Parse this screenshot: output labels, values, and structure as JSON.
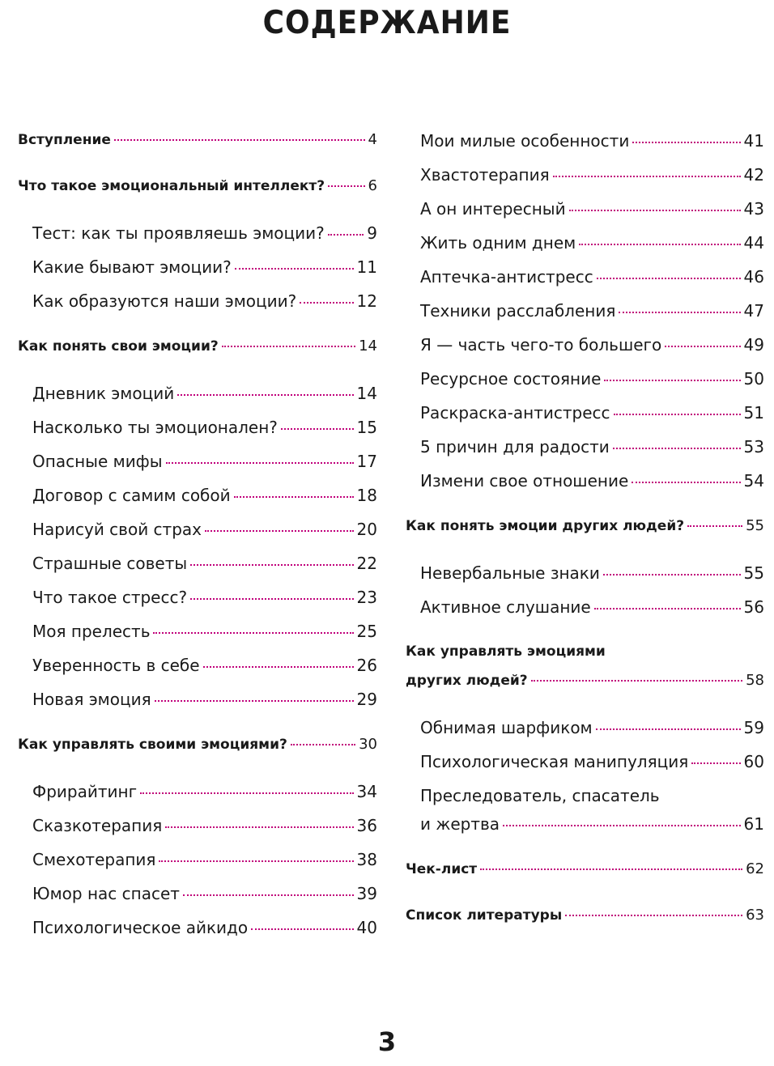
{
  "title": "СОДЕРЖАНИЕ",
  "page_number": "3",
  "columns": [
    [
      {
        "lines": [
          "Вступление"
        ],
        "page": 4,
        "bold": true
      },
      {
        "lines": [
          "Что такое эмоциональный интеллект?"
        ],
        "page": 6,
        "bold": true
      },
      {
        "lines": [
          "Тест: как ты проявляешь эмоции?"
        ],
        "page": 9,
        "bold": false
      },
      {
        "lines": [
          "Какие бывают эмоции?"
        ],
        "page": 11,
        "bold": false
      },
      {
        "lines": [
          "Как образуются наши эмоции?"
        ],
        "page": 12,
        "bold": false
      },
      {
        "lines": [
          "Как понять свои эмоции?"
        ],
        "page": 14,
        "bold": true
      },
      {
        "lines": [
          "Дневник эмоций"
        ],
        "page": 14,
        "bold": false
      },
      {
        "lines": [
          "Насколько ты эмоционален?"
        ],
        "page": 15,
        "bold": false
      },
      {
        "lines": [
          "Опасные мифы"
        ],
        "page": 17,
        "bold": false
      },
      {
        "lines": [
          "Договор с самим собой"
        ],
        "page": 18,
        "bold": false
      },
      {
        "lines": [
          "Нарисуй свой страх"
        ],
        "page": 20,
        "bold": false
      },
      {
        "lines": [
          "Страшные советы"
        ],
        "page": 22,
        "bold": false
      },
      {
        "lines": [
          "Что такое стресс?"
        ],
        "page": 23,
        "bold": false
      },
      {
        "lines": [
          "Моя прелесть"
        ],
        "page": 25,
        "bold": false
      },
      {
        "lines": [
          "Уверенность в себе"
        ],
        "page": 26,
        "bold": false
      },
      {
        "lines": [
          "Новая эмоция"
        ],
        "page": 29,
        "bold": false
      },
      {
        "lines": [
          "Как управлять своими эмоциями?"
        ],
        "page": 30,
        "bold": true
      },
      {
        "lines": [
          "Фрирайтинг"
        ],
        "page": 34,
        "bold": false
      },
      {
        "lines": [
          "Сказкотерапия"
        ],
        "page": 36,
        "bold": false
      },
      {
        "lines": [
          "Смехотерапия"
        ],
        "page": 38,
        "bold": false
      },
      {
        "lines": [
          "Юмор нас спасет"
        ],
        "page": 39,
        "bold": false
      },
      {
        "lines": [
          "Психологическое айкидо"
        ],
        "page": 40,
        "bold": false
      }
    ],
    [
      {
        "lines": [
          "Мои милые особенности"
        ],
        "page": 41,
        "bold": false
      },
      {
        "lines": [
          "Хвастотерапия"
        ],
        "page": 42,
        "bold": false
      },
      {
        "lines": [
          "А он интересный"
        ],
        "page": 43,
        "bold": false
      },
      {
        "lines": [
          "Жить одним днем"
        ],
        "page": 44,
        "bold": false
      },
      {
        "lines": [
          "Аптечка-антистресс"
        ],
        "page": 46,
        "bold": false
      },
      {
        "lines": [
          "Техники расслабления"
        ],
        "page": 47,
        "bold": false
      },
      {
        "lines": [
          "Я — часть чего-то большего"
        ],
        "page": 49,
        "bold": false
      },
      {
        "lines": [
          "Ресурсное состояние"
        ],
        "page": 50,
        "bold": false
      },
      {
        "lines": [
          "Раскраска-антистресс"
        ],
        "page": 51,
        "bold": false
      },
      {
        "lines": [
          "5 причин для радости"
        ],
        "page": 53,
        "bold": false
      },
      {
        "lines": [
          "Измени свое отношение"
        ],
        "page": 54,
        "bold": false
      },
      {
        "lines": [
          "Как понять эмоции других людей?"
        ],
        "page": 55,
        "bold": true
      },
      {
        "lines": [
          "Невербальные знаки"
        ],
        "page": 55,
        "bold": false
      },
      {
        "lines": [
          "Активное слушание"
        ],
        "page": 56,
        "bold": false
      },
      {
        "lines": [
          "Как управлять эмоциями",
          "других людей?"
        ],
        "page": 58,
        "bold": true
      },
      {
        "lines": [
          "Обнимая шарфиком"
        ],
        "page": 59,
        "bold": false
      },
      {
        "lines": [
          "Психологическая манипуляция"
        ],
        "page": 60,
        "bold": false
      },
      {
        "lines": [
          "Преследователь, спасатель",
          "и жертва"
        ],
        "page": 61,
        "bold": false
      },
      {
        "lines": [
          "Чек-лист"
        ],
        "page": 62,
        "bold": true
      },
      {
        "lines": [
          "Список литературы"
        ],
        "page": 63,
        "bold": true
      }
    ]
  ]
}
